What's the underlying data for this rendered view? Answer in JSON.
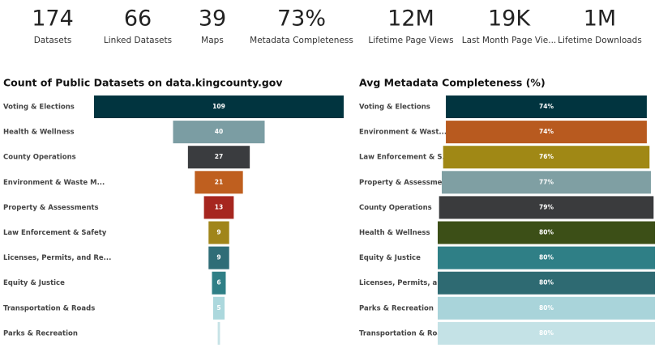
{
  "kpis": [
    {
      "value": "174",
      "label": "Datasets"
    },
    {
      "value": "66",
      "label": "Linked Datasets"
    },
    {
      "value": "39",
      "label": "Maps"
    },
    {
      "value": "73%",
      "label": "Metadata Completeness"
    },
    {
      "value": "12M",
      "label": "Lifetime Page Views"
    },
    {
      "value": "19K",
      "label": "Last Month Page Vie..."
    },
    {
      "value": "1M",
      "label": "Lifetime Downloads"
    }
  ],
  "chart_data": [
    {
      "type": "funnel",
      "title": "Count of Public Datasets on data.kingcounty.gov",
      "categories": [
        "Voting & Elections",
        "Health & Wellness",
        "County Operations",
        "Environment & Waste M...",
        "Property & Assessments",
        "Law Enforcement & Safety",
        "Licenses, Permits, and Re...",
        "Equity & Justice",
        "Transportation & Roads",
        "Parks & Recreation"
      ],
      "values": [
        109,
        40,
        27,
        21,
        13,
        9,
        9,
        6,
        5,
        1
      ],
      "colors": [
        "#01343f",
        "#7b9da3",
        "#3a3c3f",
        "#bf5f1f",
        "#a6261f",
        "#a0851a",
        "#2f6d77",
        "#2f7f86",
        "#acd8dd",
        "#c6e2e6"
      ]
    },
    {
      "type": "funnel",
      "title": "Avg Metadata Completeness (%)",
      "categories": [
        "Voting & Elections",
        "Environment & Wast...",
        "Law Enforcement & S...",
        "Property & Assessme...",
        "County Operations",
        "Health & Wellness",
        "Equity & Justice",
        "Licenses, Permits, and...",
        "Parks & Recreation",
        "Transportation & Roa..."
      ],
      "values": [
        74,
        74,
        76,
        77,
        79,
        80,
        80,
        80,
        80,
        80
      ],
      "value_labels": [
        "74%",
        "74%",
        "76%",
        "77%",
        "79%",
        "80%",
        "80%",
        "80%",
        "80%",
        "80%"
      ],
      "colors": [
        "#01343f",
        "#b85a1f",
        "#a08815",
        "#7f9fa3",
        "#3a3b3d",
        "#3c4f17",
        "#2f7f86",
        "#2e6a72",
        "#a9d4da",
        "#c4e2e6"
      ]
    }
  ]
}
